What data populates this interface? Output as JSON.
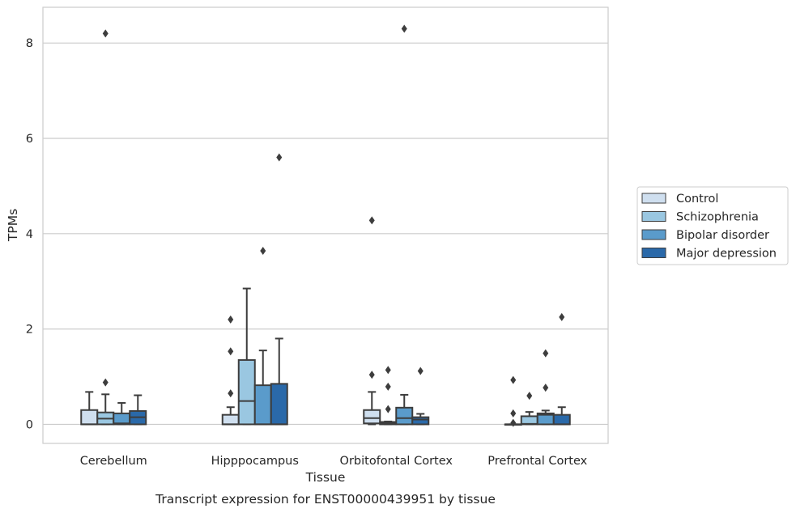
{
  "chart_data": {
    "type": "box",
    "caption": "Transcript expression for ENST00000439951 by tissue",
    "xlabel": "Tissue",
    "ylabel": "TPMs",
    "ylim": [
      -0.4,
      8.75
    ],
    "yticks": [
      0,
      2,
      4,
      6,
      8
    ],
    "grid": "horizontal",
    "legend_position": "right",
    "categories": [
      "Cerebellum",
      "Hipppocampus",
      "Orbitofontal Cortex",
      "Prefrontal Cortex"
    ],
    "series": [
      {
        "name": "Control",
        "color": "#cfdfef",
        "boxes": [
          {
            "whislo": 0,
            "q1": 0,
            "med": 0,
            "q3": 0.3,
            "whishi": 0.68,
            "fliers": []
          },
          {
            "whislo": 0,
            "q1": 0,
            "med": 0,
            "q3": 0.2,
            "whishi": 0.36,
            "fliers": [
              0.65,
              1.53,
              2.2
            ]
          },
          {
            "whislo": 0,
            "q1": 0.02,
            "med": 0.13,
            "q3": 0.3,
            "whishi": 0.68,
            "fliers": [
              1.04,
              4.28
            ]
          },
          {
            "whislo": 0,
            "q1": 0,
            "med": 0,
            "q3": 0,
            "whishi": 0,
            "fliers": [
              0.03,
              0.23,
              0.93
            ]
          }
        ]
      },
      {
        "name": "Schizophrenia",
        "color": "#9ac7e1",
        "boxes": [
          {
            "whislo": 0,
            "q1": 0,
            "med": 0.12,
            "q3": 0.25,
            "whishi": 0.63,
            "fliers": [
              0.88,
              8.2
            ]
          },
          {
            "whislo": 0,
            "q1": 0,
            "med": 0.49,
            "q3": 1.35,
            "whishi": 2.85,
            "fliers": []
          },
          {
            "whislo": 0,
            "q1": 0,
            "med": 0.02,
            "q3": 0.05,
            "whishi": 0.06,
            "fliers": [
              0.32,
              0.79,
              1.14
            ]
          },
          {
            "whislo": 0,
            "q1": 0,
            "med": 0.01,
            "q3": 0.17,
            "whishi": 0.26,
            "fliers": [
              0.6
            ]
          }
        ]
      },
      {
        "name": "Bipolar disorder",
        "color": "#5a9bcb",
        "boxes": [
          {
            "whislo": 0,
            "q1": 0,
            "med": 0.02,
            "q3": 0.23,
            "whishi": 0.45,
            "fliers": []
          },
          {
            "whislo": 0,
            "q1": 0,
            "med": 0,
            "q3": 0.82,
            "whishi": 1.55,
            "fliers": [
              3.64
            ]
          },
          {
            "whislo": 0,
            "q1": 0,
            "med": 0.13,
            "q3": 0.35,
            "whishi": 0.62,
            "fliers": [
              8.3
            ]
          },
          {
            "whislo": 0,
            "q1": 0,
            "med": 0.2,
            "q3": 0.23,
            "whishi": 0.29,
            "fliers": [
              0.77,
              1.49
            ]
          }
        ]
      },
      {
        "name": "Major depression",
        "color": "#2a69a9",
        "boxes": [
          {
            "whislo": 0,
            "q1": 0,
            "med": 0.15,
            "q3": 0.28,
            "whishi": 0.61,
            "fliers": []
          },
          {
            "whislo": 0,
            "q1": 0,
            "med": 0,
            "q3": 0.85,
            "whishi": 1.8,
            "fliers": [
              5.6
            ]
          },
          {
            "whislo": 0,
            "q1": 0,
            "med": 0.1,
            "q3": 0.15,
            "whishi": 0.22,
            "fliers": [
              1.12
            ]
          },
          {
            "whislo": 0,
            "q1": 0,
            "med": 0,
            "q3": 0.2,
            "whishi": 0.36,
            "fliers": [
              2.25
            ]
          }
        ]
      }
    ]
  }
}
